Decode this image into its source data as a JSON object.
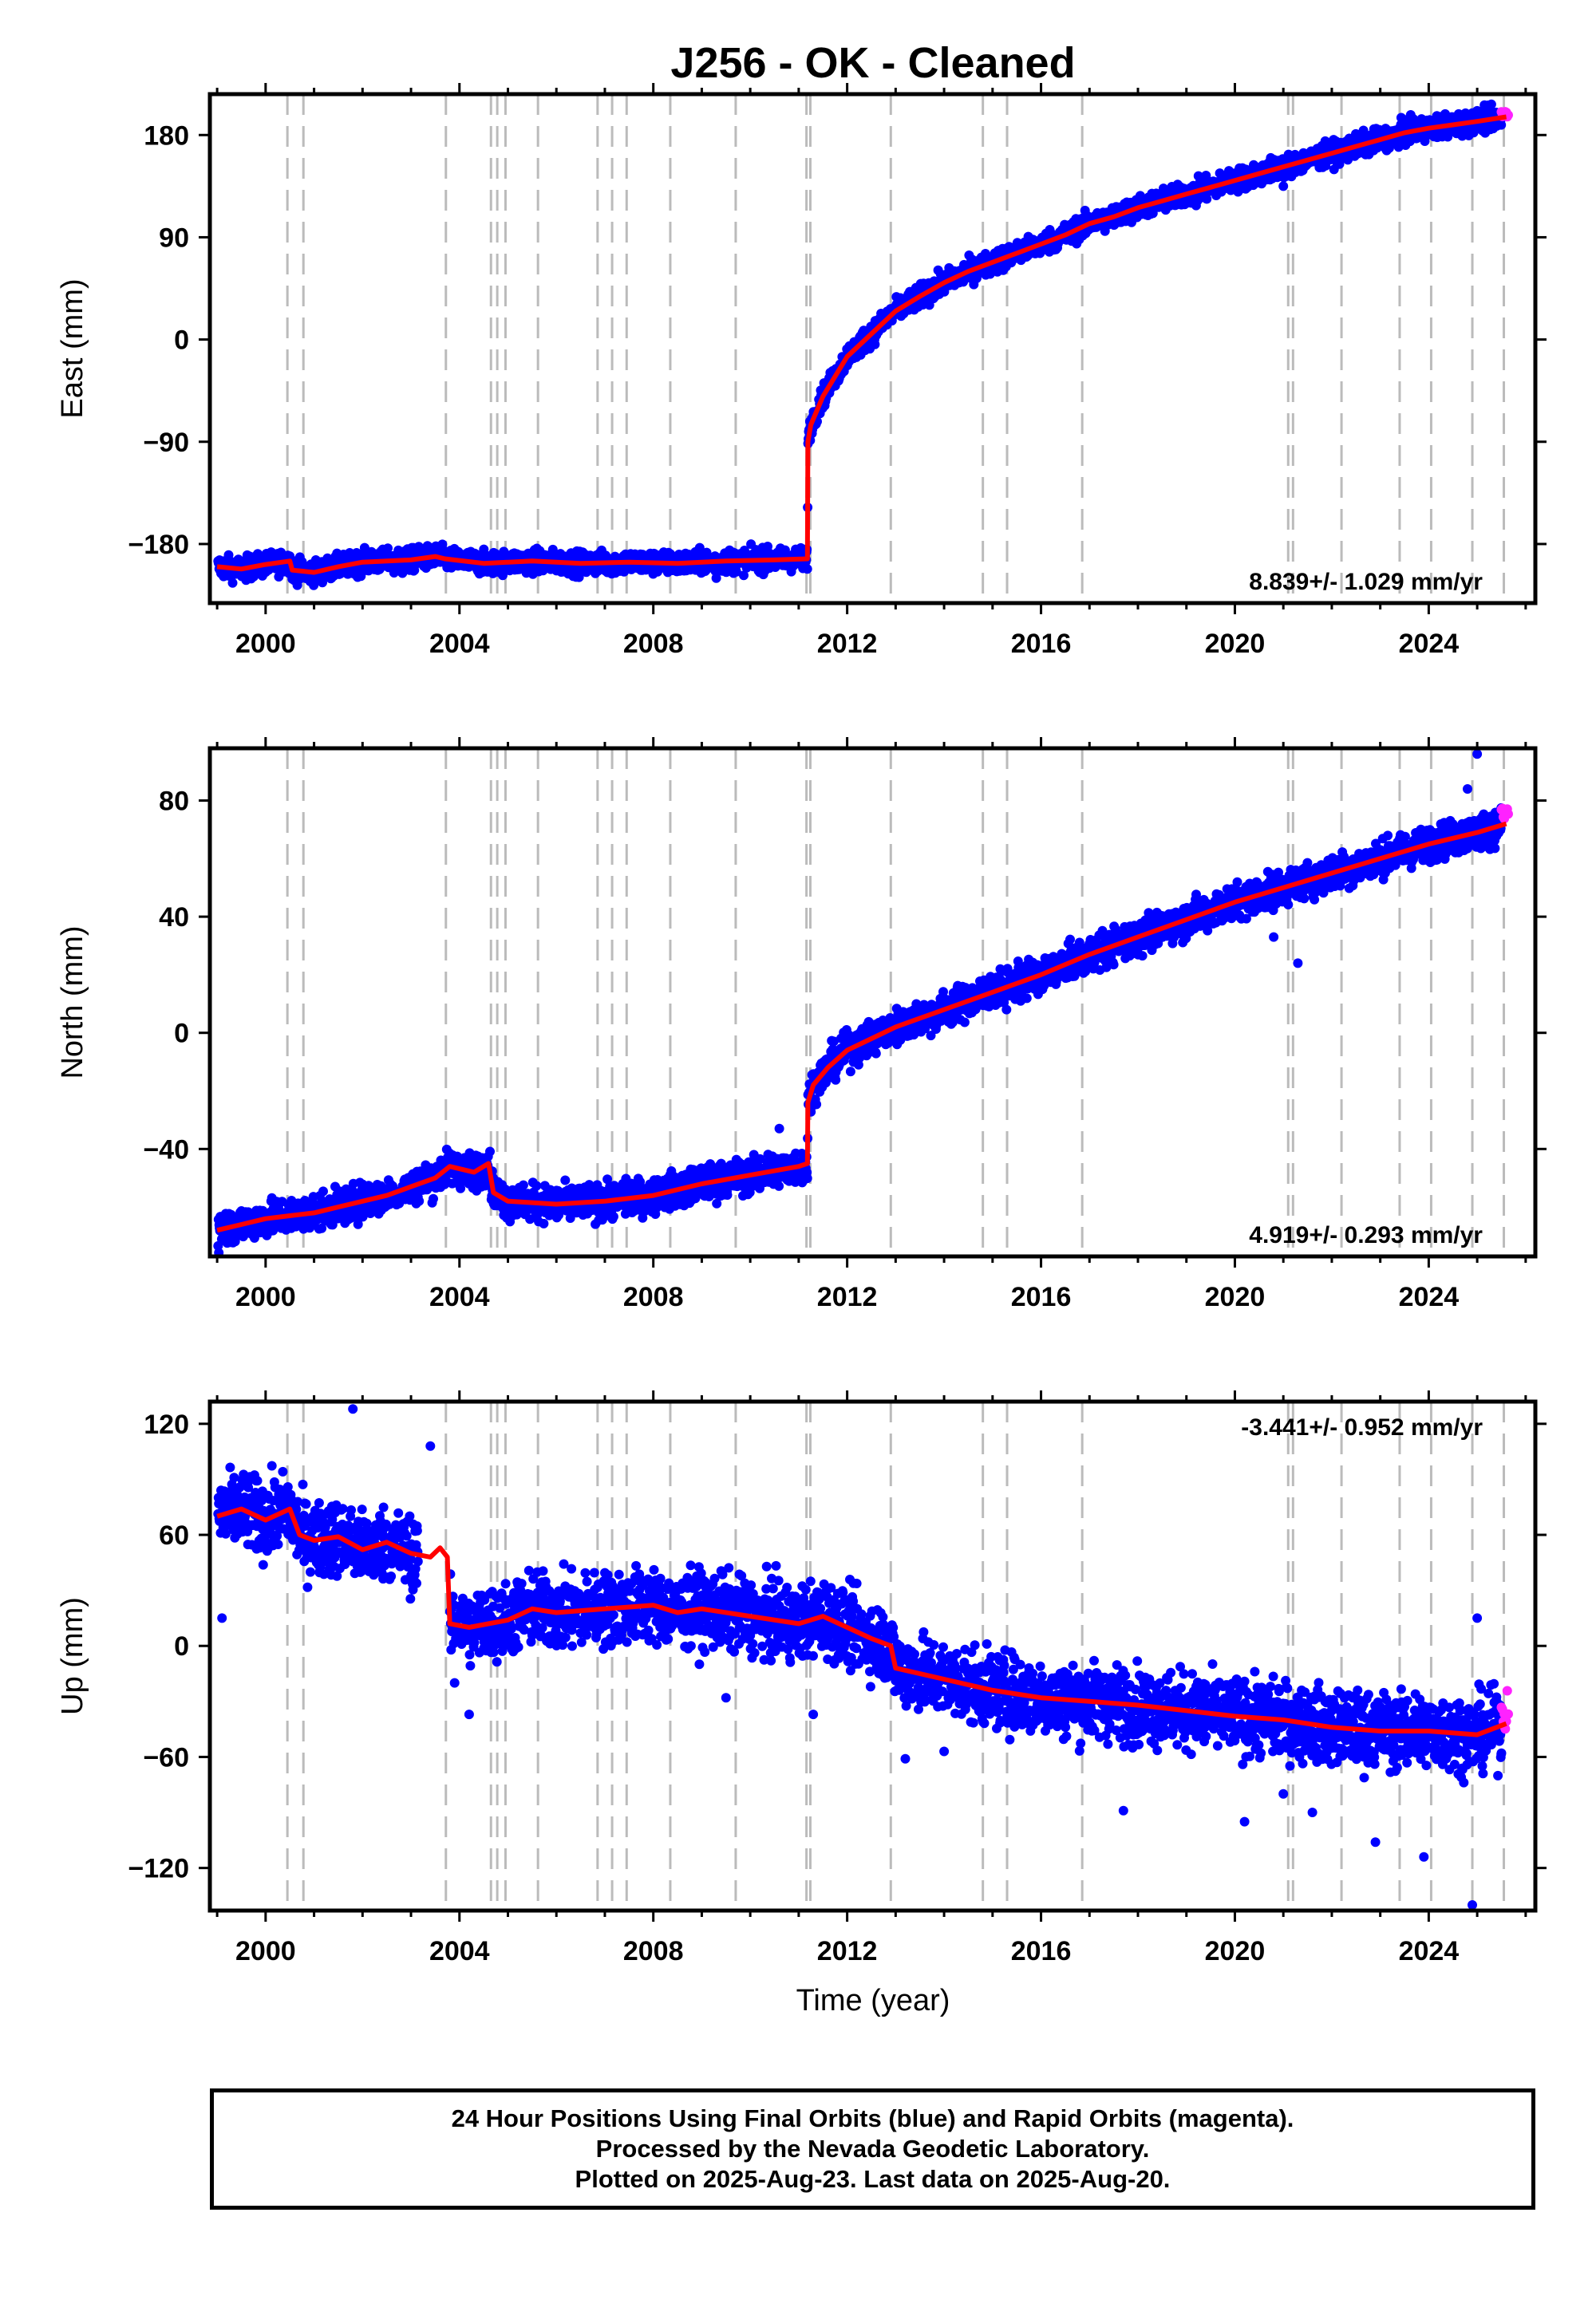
{
  "title": "J256  - OK - Cleaned",
  "xlabel": "Time (year)",
  "footer": {
    "line1": "24 Hour Positions Using Final Orbits (blue) and Rapid Orbits (magenta).",
    "line2": "Processed by the Nevada Geodetic Laboratory.",
    "line3": "Plotted on 2025-Aug-23. Last data on 2025-Aug-20."
  },
  "colors": {
    "final": "#0000ff",
    "rapid": "#ff22ff",
    "model": "#ff0000",
    "events": "#bbbbbb"
  },
  "chart_data": [
    {
      "type": "scatter",
      "name": "east",
      "ylabel": "East (mm)",
      "rate": "8.839+/- 1.029 mm/yr",
      "xlim": [
        1998.85,
        2026.2
      ],
      "ylim": [
        -232,
        216
      ],
      "xticks": [
        2000,
        2004,
        2008,
        2012,
        2016,
        2020,
        2024
      ],
      "yticks": [
        -180,
        -90,
        0,
        90,
        180
      ],
      "model": [
        [
          1999.0,
          -200
        ],
        [
          1999.5,
          -202
        ],
        [
          2000.0,
          -198
        ],
        [
          2000.5,
          -195
        ],
        [
          2000.55,
          -203
        ],
        [
          2001.0,
          -205
        ],
        [
          2001.5,
          -200
        ],
        [
          2002.0,
          -196
        ],
        [
          2003.0,
          -194
        ],
        [
          2003.5,
          -191
        ],
        [
          2003.7,
          -193
        ],
        [
          2004.5,
          -197
        ],
        [
          2005.5,
          -195
        ],
        [
          2006.5,
          -197
        ],
        [
          2007.5,
          -196
        ],
        [
          2008.5,
          -197
        ],
        [
          2009.5,
          -195
        ],
        [
          2010.5,
          -194
        ],
        [
          2011.18,
          -193
        ],
        [
          2011.19,
          -90
        ],
        [
          2011.25,
          -75
        ],
        [
          2011.5,
          -50
        ],
        [
          2012.0,
          -15
        ],
        [
          2012.5,
          5
        ],
        [
          2013.0,
          25
        ],
        [
          2013.5,
          38
        ],
        [
          2014.0,
          50
        ],
        [
          2014.5,
          60
        ],
        [
          2015.0,
          68
        ],
        [
          2015.5,
          76
        ],
        [
          2016.0,
          84
        ],
        [
          2016.5,
          92
        ],
        [
          2017.0,
          102
        ],
        [
          2017.5,
          108
        ],
        [
          2018.0,
          116
        ],
        [
          2018.5,
          122
        ],
        [
          2019.0,
          128
        ],
        [
          2019.5,
          134
        ],
        [
          2020.0,
          140
        ],
        [
          2020.5,
          146
        ],
        [
          2021.0,
          152
        ],
        [
          2021.5,
          158
        ],
        [
          2022.0,
          164
        ],
        [
          2022.5,
          170
        ],
        [
          2023.0,
          176
        ],
        [
          2023.5,
          182
        ],
        [
          2024.0,
          186
        ],
        [
          2024.5,
          189
        ],
        [
          2025.0,
          192
        ],
        [
          2025.6,
          196
        ]
      ],
      "noise": 5,
      "outliers": [
        [
          2000.6,
          -210
        ],
        [
          2001.1,
          -208
        ],
        [
          2009.3,
          -210
        ],
        [
          2021.0,
          135
        ],
        [
          2019.2,
          118
        ],
        [
          2016.7,
          93
        ]
      ]
    },
    {
      "type": "scatter",
      "name": "north",
      "ylabel": "North (mm)",
      "rate": "4.919+/- 0.293 mm/yr",
      "xlim": [
        1998.85,
        2026.2
      ],
      "ylim": [
        -77,
        98
      ],
      "xticks": [
        2000,
        2004,
        2008,
        2012,
        2016,
        2020,
        2024
      ],
      "yticks": [
        -40,
        0,
        40,
        80
      ],
      "model": [
        [
          1999.0,
          -68
        ],
        [
          1999.5,
          -66
        ],
        [
          2000.0,
          -64
        ],
        [
          2000.5,
          -63
        ],
        [
          2001.0,
          -62
        ],
        [
          2001.5,
          -60
        ],
        [
          2002.0,
          -58
        ],
        [
          2002.5,
          -56
        ],
        [
          2003.0,
          -53
        ],
        [
          2003.5,
          -50
        ],
        [
          2003.8,
          -46
        ],
        [
          2004.3,
          -48
        ],
        [
          2004.6,
          -45
        ],
        [
          2004.7,
          -55
        ],
        [
          2005.0,
          -58
        ],
        [
          2006.0,
          -59
        ],
        [
          2007.0,
          -58
        ],
        [
          2008.0,
          -56
        ],
        [
          2009.0,
          -52
        ],
        [
          2010.0,
          -49
        ],
        [
          2011.0,
          -46
        ],
        [
          2011.18,
          -45
        ],
        [
          2011.19,
          -24
        ],
        [
          2011.3,
          -18
        ],
        [
          2011.6,
          -12
        ],
        [
          2012.0,
          -6
        ],
        [
          2012.5,
          -2
        ],
        [
          2013.0,
          2
        ],
        [
          2014.0,
          8
        ],
        [
          2015.0,
          14
        ],
        [
          2016.0,
          20
        ],
        [
          2017.0,
          27
        ],
        [
          2018.0,
          33
        ],
        [
          2019.0,
          39
        ],
        [
          2020.0,
          45
        ],
        [
          2021.0,
          50
        ],
        [
          2022.0,
          55
        ],
        [
          2023.0,
          60
        ],
        [
          2024.0,
          65
        ],
        [
          2025.0,
          69
        ],
        [
          2025.6,
          72
        ]
      ],
      "noise": 3,
      "outliers": [
        [
          2010.6,
          -33
        ],
        [
          2021.3,
          24
        ],
        [
          2020.8,
          33
        ],
        [
          2025.0,
          96
        ],
        [
          2024.8,
          84
        ]
      ]
    },
    {
      "type": "scatter",
      "name": "up",
      "ylabel": "Up (mm)",
      "rate": "-3.441+/- 0.952 mm/yr",
      "xlim": [
        1998.85,
        2026.2
      ],
      "ylim": [
        -143,
        132
      ],
      "xticks": [
        2000,
        2004,
        2008,
        2012,
        2016,
        2020,
        2024
      ],
      "yticks": [
        -120,
        -60,
        0,
        60,
        120
      ],
      "model": [
        [
          1999.0,
          70
        ],
        [
          1999.5,
          74
        ],
        [
          2000.0,
          68
        ],
        [
          2000.5,
          74
        ],
        [
          2000.7,
          60
        ],
        [
          2001.0,
          57
        ],
        [
          2001.5,
          59
        ],
        [
          2002.0,
          52
        ],
        [
          2002.5,
          56
        ],
        [
          2003.0,
          50
        ],
        [
          2003.4,
          48
        ],
        [
          2003.6,
          53
        ],
        [
          2003.75,
          48
        ],
        [
          2003.8,
          12
        ],
        [
          2004.2,
          10
        ],
        [
          2005.0,
          14
        ],
        [
          2005.5,
          20
        ],
        [
          2006.0,
          18
        ],
        [
          2007.0,
          20
        ],
        [
          2008.0,
          22
        ],
        [
          2008.5,
          18
        ],
        [
          2009.0,
          20
        ],
        [
          2010.0,
          16
        ],
        [
          2011.0,
          12
        ],
        [
          2011.5,
          16
        ],
        [
          2012.0,
          10
        ],
        [
          2012.5,
          4
        ],
        [
          2012.9,
          0
        ],
        [
          2013.0,
          -12
        ],
        [
          2014.0,
          -18
        ],
        [
          2015.0,
          -24
        ],
        [
          2016.0,
          -28
        ],
        [
          2017.0,
          -30
        ],
        [
          2018.0,
          -32
        ],
        [
          2019.0,
          -35
        ],
        [
          2020.0,
          -38
        ],
        [
          2021.0,
          -40
        ],
        [
          2022.0,
          -44
        ],
        [
          2023.0,
          -46
        ],
        [
          2024.0,
          -46
        ],
        [
          2025.0,
          -48
        ],
        [
          2025.6,
          -42
        ]
      ],
      "noise": 10,
      "outliers": [
        [
          1999.1,
          15
        ],
        [
          2001.8,
          128
        ],
        [
          2003.4,
          108
        ],
        [
          2003.9,
          -20
        ],
        [
          2004.2,
          -37
        ],
        [
          2009.5,
          -28
        ],
        [
          2011.3,
          -37
        ],
        [
          2013.2,
          -61
        ],
        [
          2014.0,
          -57
        ],
        [
          2017.7,
          -89
        ],
        [
          2020.2,
          -95
        ],
        [
          2021.0,
          -80
        ],
        [
          2021.6,
          -90
        ],
        [
          2022.9,
          -106
        ],
        [
          2023.9,
          -114
        ],
        [
          2025.0,
          15
        ],
        [
          2024.9,
          -140
        ],
        [
          2025.5,
          -58
        ]
      ]
    }
  ],
  "events": [
    2000.45,
    2000.78,
    2003.72,
    2004.65,
    2004.78,
    2004.95,
    2005.62,
    2006.85,
    2007.15,
    2007.45,
    2008.35,
    2009.7,
    2011.16,
    2011.24,
    2012.9,
    2014.8,
    2015.3,
    2016.85,
    2021.1,
    2021.2,
    2022.2,
    2023.4,
    2024.05,
    2024.9,
    2025.55
  ]
}
